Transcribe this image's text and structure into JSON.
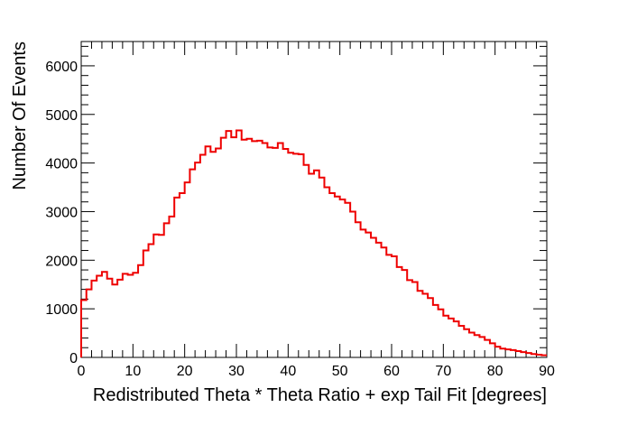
{
  "chart_data": {
    "type": "histogram",
    "title": "",
    "xlabel": "Redistributed Theta * Theta Ratio + exp Tail Fit [degrees]",
    "ylabel": "Number Of Events",
    "xlim": [
      0,
      90
    ],
    "ylim": [
      0,
      6500
    ],
    "x_ticks": [
      0,
      10,
      20,
      30,
      40,
      50,
      60,
      70,
      80,
      90
    ],
    "y_ticks": [
      0,
      1000,
      2000,
      3000,
      4000,
      5000,
      6000
    ],
    "grid": false,
    "line_color": "#ee0000",
    "bin_width": 1,
    "series": [
      {
        "values": [
          1180,
          1400,
          1580,
          1680,
          1760,
          1620,
          1500,
          1600,
          1720,
          1700,
          1740,
          1900,
          2200,
          2330,
          2530,
          2520,
          2760,
          2900,
          3290,
          3380,
          3600,
          3870,
          4010,
          4170,
          4340,
          4230,
          4300,
          4520,
          4660,
          4530,
          4670,
          4480,
          4500,
          4450,
          4460,
          4410,
          4320,
          4310,
          4410,
          4290,
          4210,
          4190,
          4180,
          3960,
          3780,
          3850,
          3700,
          3500,
          3380,
          3310,
          3250,
          3180,
          3000,
          2780,
          2630,
          2570,
          2460,
          2360,
          2260,
          2110,
          2080,
          1860,
          1800,
          1590,
          1550,
          1370,
          1310,
          1220,
          1080,
          990,
          860,
          800,
          740,
          650,
          580,
          510,
          460,
          420,
          360,
          290,
          220,
          180,
          165,
          150,
          130,
          110,
          90,
          70,
          55,
          45
        ]
      }
    ]
  }
}
